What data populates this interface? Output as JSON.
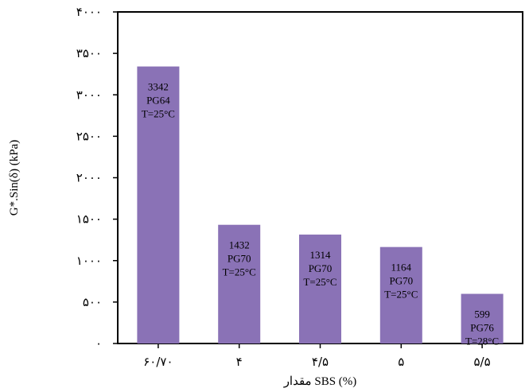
{
  "chart_data": {
    "type": "bar",
    "title": "",
    "xlabel": "مقدار SBS (%)",
    "ylabel": "G*.Sin(δ) (kPa)",
    "ylim": [
      0,
      4000
    ],
    "yticks": [
      {
        "value": 0,
        "label": "۰"
      },
      {
        "value": 500,
        "label": "۵۰۰"
      },
      {
        "value": 1000,
        "label": "۱۰۰۰"
      },
      {
        "value": 1500,
        "label": "۱۵۰۰"
      },
      {
        "value": 2000,
        "label": "۲۰۰۰"
      },
      {
        "value": 2500,
        "label": "۲۵۰۰"
      },
      {
        "value": 3000,
        "label": "۳۰۰۰"
      },
      {
        "value": 3500,
        "label": "۳۵۰۰"
      },
      {
        "value": 4000,
        "label": "۴۰۰۰"
      }
    ],
    "categories": [
      "۶۰/۷۰",
      "۴",
      "۴/۵",
      "۵",
      "۵/۵"
    ],
    "values": [
      3342,
      1432,
      1314,
      1164,
      599
    ],
    "bar_labels": [
      [
        "3342",
        "PG64",
        "T=25°C"
      ],
      [
        "1432",
        "PG70",
        "T=25°C"
      ],
      [
        "1314",
        "PG70",
        "T=25°C"
      ],
      [
        "1164",
        "PG70",
        "T=25°C"
      ],
      [
        "599",
        "PG76",
        "T=28°C"
      ]
    ],
    "bar_color": "#8a72b6",
    "grid": false,
    "legend": "none"
  }
}
